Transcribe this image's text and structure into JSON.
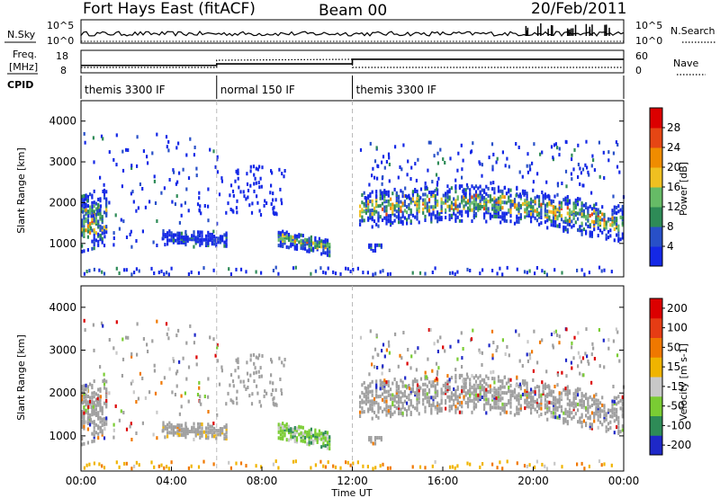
{
  "header": {
    "station": "Fort Hays East (fitACF)",
    "beam": "Beam 00",
    "date": "20/Feb/2011"
  },
  "nsky_panel": {
    "left_label": "N.Sky",
    "right_label": "N.Search",
    "left_ticks": [
      "10^5",
      "10^0"
    ],
    "right_ticks": [
      "10^5",
      "10^0"
    ]
  },
  "freq_panel": {
    "left_label_1": "Freq.",
    "left_label_2": "[MHz]",
    "left_ticks": [
      "18",
      "8"
    ],
    "right_ticks": [
      "60",
      "0"
    ],
    "right_label": "Nave",
    "cpid_label": "CPID"
  },
  "cpid_segments": [
    {
      "label": "themis 3300 IF",
      "start_hour": 0,
      "end_hour": 6
    },
    {
      "label": "normal 150 IF",
      "start_hour": 6,
      "end_hour": 12
    },
    {
      "label": "themis 3300 IF",
      "start_hour": 12,
      "end_hour": 24
    }
  ],
  "colors": {
    "power": [
      "#1428e6",
      "#2850c8",
      "#2e8b57",
      "#66bb66",
      "#f0c020",
      "#f08c00",
      "#e64614",
      "#dc0000"
    ],
    "velocity": [
      "#1e28c8",
      "#2e8b57",
      "#7acc33",
      "#c8c8c8",
      "#f0b400",
      "#f07800",
      "#e63c14",
      "#dc0000"
    ],
    "ground_scatter": "#a0a0a0"
  },
  "chart_data": [
    {
      "type": "heatmap",
      "name": "power",
      "ylabel": "Slant Range [km]",
      "xlim": [
        0,
        24
      ],
      "ylim": [
        180,
        4500
      ],
      "yticks": [
        1000,
        2000,
        3000,
        4000
      ],
      "colorbar_label": "Power [dB]",
      "colorbar_ticks": [
        "4",
        "8",
        "12",
        "16",
        "20",
        "24",
        "28"
      ],
      "colorbar_range": [
        0,
        30
      ]
    },
    {
      "type": "heatmap",
      "name": "velocity",
      "ylabel": "Slant Range [km]",
      "xlabel": "Time UT",
      "xlim": [
        0,
        24
      ],
      "ylim": [
        180,
        4500
      ],
      "yticks": [
        1000,
        2000,
        3000,
        4000
      ],
      "xticks": [
        "00:00",
        "04:00",
        "08:00",
        "12:00",
        "16:00",
        "20:00",
        "00:00"
      ],
      "colorbar_label": "Velocity [m s-1]",
      "colorbar_ticks": [
        "200",
        "100",
        "50",
        "15",
        "-15",
        "-50",
        "-100",
        "-200"
      ]
    }
  ]
}
